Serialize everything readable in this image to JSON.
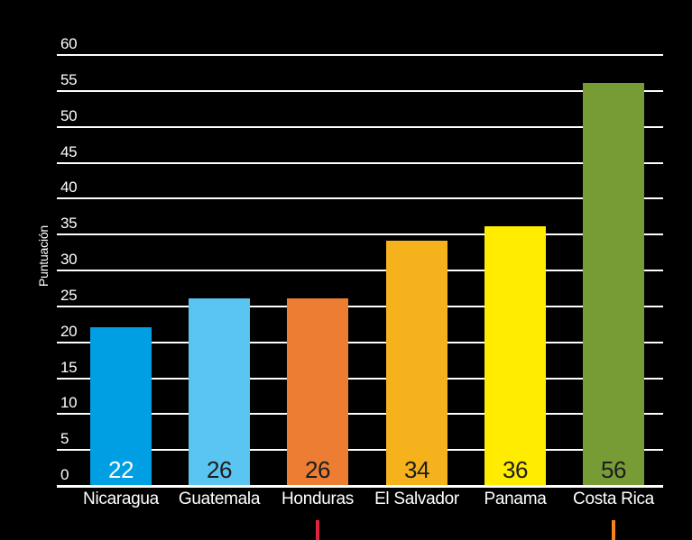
{
  "chart_data": {
    "type": "bar",
    "title": "",
    "xlabel": "",
    "ylabel": "Puntuación",
    "ylim": [
      0,
      60
    ],
    "ytick_step": 5,
    "yticks": [
      0,
      5,
      10,
      15,
      20,
      25,
      30,
      35,
      40,
      45,
      50,
      55,
      60
    ],
    "grid": true,
    "legend": "none",
    "background_color": "#000000",
    "gridline_color": "#ffffff",
    "categories": [
      "Nicaragua",
      "Guatemala",
      "Honduras",
      "El Salvador",
      "Panama",
      "Costa Rica"
    ],
    "values": [
      22,
      26,
      26,
      34,
      36,
      56
    ],
    "value_labels": [
      "22",
      "26",
      "26",
      "34",
      "36",
      "56"
    ],
    "bar_colors": [
      "#009FE3",
      "#5BC5F2",
      "#EC7D33",
      "#F6B21D",
      "#FFEC00",
      "#779C35"
    ],
    "value_label_colors": [
      "#ffffff",
      "#1D1D1B",
      "#1D1D1B",
      "#1D1D1B",
      "#1D1D1B",
      "#1D1D1B"
    ],
    "axis_text_color": "#ffffff",
    "markers": [
      {
        "category": "Honduras",
        "color": "#E0243E"
      },
      {
        "category": "Costa Rica",
        "color": "#F5841E"
      }
    ]
  }
}
